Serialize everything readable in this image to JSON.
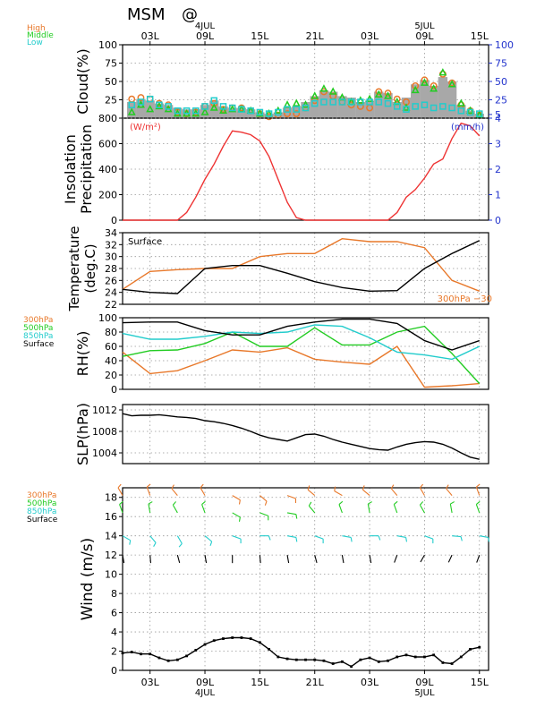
{
  "header": {
    "title": "MSM",
    "title_suffix": "@",
    "dates": [
      {
        "label": "4JUL",
        "hour": 9
      },
      {
        "label": "5JUL",
        "hour": 33
      }
    ]
  },
  "time_axis": {
    "labels": [
      {
        "hour": 3,
        "text": "03L"
      },
      {
        "hour": 9,
        "text": "09L"
      },
      {
        "hour": 15,
        "text": "15L"
      },
      {
        "hour": 21,
        "text": "21L"
      },
      {
        "hour": 27,
        "text": "03L"
      },
      {
        "hour": 33,
        "text": "09L"
      },
      {
        "hour": 39,
        "text": "15L"
      }
    ]
  },
  "colors": {
    "high": "#e8782a",
    "middle": "#22cc22",
    "low": "#22cccc",
    "surface": "#000000",
    "insolation": "#ee3333",
    "precipitation_axis": "#2233cc",
    "cloud_fill": "#a8a8a8"
  },
  "chart_data": [
    {
      "type": "bar",
      "id": "cloud",
      "ylabel": "Cloud(%)",
      "ylim": [
        0,
        100
      ],
      "yticks": [
        25,
        50,
        75,
        100
      ],
      "right_axis": {
        "ticks": [
          5,
          25,
          50,
          75,
          100
        ]
      },
      "legend": [
        "High",
        "Middle",
        "Low"
      ],
      "x": [
        1,
        2,
        3,
        4,
        5,
        6,
        7,
        8,
        9,
        10,
        11,
        12,
        13,
        14,
        15,
        16,
        17,
        18,
        19,
        20,
        21,
        22,
        23,
        24,
        25,
        26,
        27,
        28,
        29,
        30,
        31,
        32,
        33,
        34,
        35,
        36,
        37,
        38,
        39
      ],
      "total": [
        22,
        26,
        24,
        20,
        18,
        14,
        12,
        12,
        18,
        24,
        16,
        14,
        14,
        12,
        8,
        6,
        8,
        14,
        16,
        22,
        30,
        38,
        36,
        30,
        28,
        22,
        24,
        36,
        34,
        22,
        28,
        46,
        52,
        44,
        56,
        50,
        18,
        10,
        6
      ],
      "series": [
        {
          "name": "High",
          "values": [
            26,
            28,
            26,
            20,
            18,
            8,
            6,
            8,
            16,
            20,
            12,
            14,
            14,
            10,
            6,
            2,
            4,
            6,
            6,
            14,
            24,
            36,
            30,
            22,
            18,
            16,
            14,
            36,
            34,
            26,
            22,
            44,
            52,
            44,
            60,
            48,
            18,
            10,
            4
          ]
        },
        {
          "name": "Middle",
          "values": [
            8,
            18,
            12,
            16,
            12,
            6,
            6,
            6,
            8,
            14,
            10,
            12,
            12,
            10,
            6,
            6,
            10,
            18,
            20,
            18,
            30,
            40,
            36,
            28,
            22,
            24,
            26,
            32,
            30,
            22,
            14,
            38,
            48,
            40,
            62,
            46,
            20,
            10,
            4
          ]
        },
        {
          "name": "Low",
          "values": [
            18,
            22,
            26,
            18,
            16,
            10,
            10,
            10,
            16,
            24,
            16,
            14,
            12,
            10,
            8,
            6,
            8,
            12,
            12,
            14,
            20,
            22,
            22,
            22,
            22,
            22,
            22,
            22,
            20,
            16,
            12,
            16,
            18,
            14,
            16,
            14,
            10,
            8,
            6
          ]
        }
      ]
    },
    {
      "type": "line",
      "id": "insolation",
      "ylabel": "Insolation Precipitation",
      "left_unit": "(W/m²)",
      "right_unit": "(mm/h)",
      "ylim": [
        0,
        800
      ],
      "yticks": [
        0,
        200,
        400,
        600,
        800
      ],
      "right_ticks": [
        0,
        1,
        2,
        3,
        4
      ],
      "x": [
        0,
        1,
        2,
        3,
        4,
        5,
        6,
        7,
        8,
        9,
        10,
        11,
        12,
        13,
        14,
        15,
        16,
        17,
        18,
        19,
        20,
        21,
        22,
        23,
        24,
        25,
        26,
        27,
        28,
        29,
        30,
        31,
        32,
        33,
        34,
        35,
        36,
        37,
        38,
        39
      ],
      "series": [
        {
          "name": "",
          "values": [
            0,
            0,
            0,
            0,
            0,
            0,
            0,
            60,
            180,
            320,
            440,
            580,
            700,
            690,
            670,
            620,
            500,
            320,
            140,
            20,
            0,
            0,
            0,
            0,
            0,
            0,
            0,
            0,
            0,
            0,
            60,
            180,
            240,
            330,
            440,
            480,
            640,
            760,
            740,
            660
          ]
        }
      ]
    },
    {
      "type": "line",
      "id": "temperature",
      "ylabel": "Temperature (deg.C)",
      "annotation": "Surface",
      "ylim": [
        22,
        34
      ],
      "yticks": [
        22,
        24,
        26,
        28,
        30,
        32,
        34
      ],
      "right_label": "300hPa −30",
      "x": [
        0,
        3,
        6,
        9,
        12,
        15,
        18,
        21,
        24,
        27,
        30,
        33,
        36,
        39
      ],
      "series": [
        {
          "name": "Surface",
          "values": [
            24.5,
            24.0,
            23.8,
            28.0,
            28.5,
            28.5,
            27.2,
            25.8,
            24.8,
            24.2,
            24.3,
            28.0,
            30.5,
            32.7
          ]
        },
        {
          "name": "300hPa",
          "values": [
            24.5,
            27.5,
            27.8,
            28.0,
            28.0,
            30.0,
            30.5,
            30.5,
            33.0,
            32.5,
            32.5,
            31.5,
            26.0,
            24.2
          ]
        }
      ]
    },
    {
      "type": "line",
      "id": "rh",
      "ylabel": "RH(%)",
      "ylim": [
        0,
        100
      ],
      "yticks": [
        0,
        20,
        40,
        60,
        80,
        100
      ],
      "legend": [
        "300hPa",
        "500hPa",
        "850hPa",
        "Surface"
      ],
      "x": [
        0,
        3,
        6,
        9,
        12,
        15,
        18,
        21,
        24,
        27,
        30,
        33,
        36,
        39
      ],
      "series": [
        {
          "name": "300hPa",
          "values": [
            52,
            22,
            26,
            40,
            55,
            52,
            58,
            42,
            38,
            35,
            60,
            3,
            5,
            8
          ]
        },
        {
          "name": "500hPa",
          "values": [
            46,
            54,
            55,
            64,
            80,
            60,
            60,
            86,
            62,
            62,
            80,
            88,
            50,
            8
          ]
        },
        {
          "name": "850hPa",
          "values": [
            78,
            70,
            70,
            74,
            80,
            78,
            80,
            90,
            88,
            72,
            52,
            48,
            42,
            60
          ]
        },
        {
          "name": "Surface",
          "values": [
            93,
            94,
            94,
            82,
            76,
            76,
            88,
            94,
            98,
            98,
            92,
            68,
            55,
            68
          ]
        }
      ]
    },
    {
      "type": "line",
      "id": "slp",
      "ylabel": "SLP(hPa)",
      "ylim": [
        1002,
        1013
      ],
      "yticks": [
        1004,
        1008,
        1012
      ],
      "x": [
        0,
        1,
        2,
        3,
        4,
        5,
        6,
        7,
        8,
        9,
        10,
        11,
        12,
        13,
        14,
        15,
        16,
        17,
        18,
        19,
        20,
        21,
        22,
        23,
        24,
        25,
        26,
        27,
        28,
        29,
        30,
        31,
        32,
        33,
        34,
        35,
        36,
        37,
        38,
        39
      ],
      "series": [
        {
          "name": "",
          "values": [
            1011.3,
            1010.9,
            1011.0,
            1011.0,
            1011.1,
            1010.9,
            1010.7,
            1010.6,
            1010.4,
            1010.0,
            1009.8,
            1009.5,
            1009.1,
            1008.6,
            1008.0,
            1007.3,
            1006.8,
            1006.5,
            1006.2,
            1006.8,
            1007.4,
            1007.5,
            1007.1,
            1006.5,
            1006.0,
            1005.6,
            1005.2,
            1004.8,
            1004.6,
            1004.5,
            1005.1,
            1005.6,
            1005.9,
            1006.1,
            1006.0,
            1005.6,
            1004.9,
            1004.0,
            1003.2,
            1002.8
          ]
        }
      ]
    },
    {
      "type": "line",
      "id": "wind",
      "ylabel": "Wind (m/s)",
      "ylim": [
        0,
        19
      ],
      "yticks": [
        0,
        2,
        4,
        6,
        8,
        10,
        12,
        14,
        16,
        18
      ],
      "legend": [
        "300hPa",
        "500hPa",
        "850hPa",
        "Surface"
      ],
      "x": [
        0,
        1,
        2,
        3,
        4,
        5,
        6,
        7,
        8,
        9,
        10,
        11,
        12,
        13,
        14,
        15,
        16,
        17,
        18,
        19,
        20,
        21,
        22,
        23,
        24,
        25,
        26,
        27,
        28,
        29,
        30,
        31,
        32,
        33,
        34,
        35,
        36,
        37,
        38,
        39
      ],
      "series": [
        {
          "name": "Surface",
          "values": [
            1.8,
            1.9,
            1.7,
            1.7,
            1.3,
            1.0,
            1.1,
            1.5,
            2.1,
            2.7,
            3.1,
            3.3,
            3.4,
            3.4,
            3.3,
            2.9,
            2.2,
            1.4,
            1.2,
            1.1,
            1.1,
            1.1,
            1.0,
            0.7,
            0.9,
            0.4,
            1.1,
            1.3,
            0.9,
            1.0,
            1.4,
            1.6,
            1.4,
            1.4,
            1.6,
            0.8,
            0.7,
            1.4,
            2.2,
            2.4
          ]
        }
      ]
    }
  ]
}
